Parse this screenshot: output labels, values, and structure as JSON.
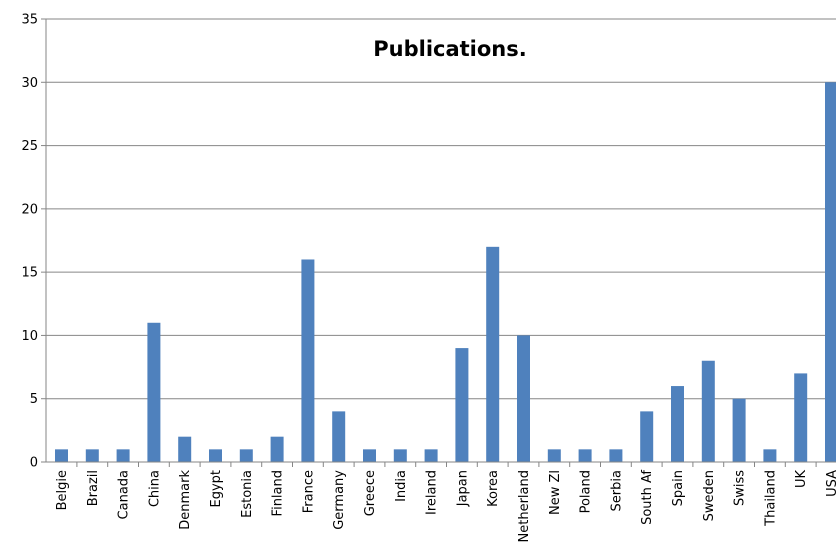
{
  "chart_data": {
    "type": "bar",
    "title": "Publications.",
    "xlabel": "",
    "ylabel": "",
    "ylim": [
      0,
      35
    ],
    "yticks": [
      0,
      5,
      10,
      15,
      20,
      25,
      30,
      35
    ],
    "grid": true,
    "legend": "none",
    "bar_color": "#4f81bd",
    "categories": [
      "Belgie",
      "Brazil",
      "Canada",
      "China",
      "Denmark",
      "Egypt",
      "Estonia",
      "Finland",
      "France",
      "Germany",
      "Greece",
      "India",
      "Ireland",
      "Japan",
      "Korea",
      "Netherland",
      "New Zl",
      "Poland",
      "Serbia",
      "South Af",
      "Spain",
      "Sweden",
      "Swiss",
      "Thailand",
      "UK",
      "USA"
    ],
    "values": [
      1,
      1,
      1,
      11,
      2,
      1,
      1,
      2,
      16,
      4,
      1,
      1,
      1,
      9,
      17,
      10,
      1,
      1,
      1,
      4,
      6,
      8,
      5,
      1,
      7,
      30
    ]
  }
}
